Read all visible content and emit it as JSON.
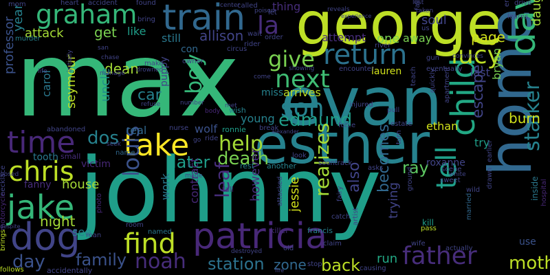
{
  "words": {
    "max": "max",
    "johnny": "johnny",
    "george": "george",
    "evan": "evan",
    "esther": "esther",
    "home": "home",
    "patricia": "patricia",
    "train": "train",
    "graham": "graham",
    "davis": "davis",
    "take": "take",
    "return": "return",
    "child": "child",
    "time": "time",
    "jake": "jake",
    "dog": "dog",
    "chris": "chris",
    "find": "find",
    "father": "father",
    "tell": "tell",
    "lucy": "lucy",
    "son": "son",
    "next": "next",
    "give": "give",
    "help": "help",
    "edmund": "edmund",
    "stalker": "stalker",
    "death": "death",
    "louis": "louis",
    "noah": "noah",
    "station": "station",
    "back": "back",
    "mother": "mother",
    "boy": "boy",
    "la": "la",
    "allison": "allison",
    "dos": "dos",
    "escape": "escape",
    "realizes": "realizes",
    "family": "family",
    "day": "day",
    "house": "house",
    "night": "night",
    "later": "later",
    "car": "car",
    "dean": "dean",
    "get": "get",
    "attack": "attack",
    "year": "year",
    "professor": "professor",
    "seymour": "seymour",
    "uncle": "uncle",
    "carol": "carol",
    "leaf": "leaf",
    "jessie": "jessie",
    "becomes": "becomes",
    "run": "run",
    "zone": "zone",
    "also": "also",
    "ray": "ray",
    "ethan": "ethan",
    "burn": "burn",
    "page": "page",
    "one": "one",
    "away": "away",
    "lauren": "lauren",
    "soul": "soul",
    "daughter": "daughter",
    "bryan": "bryan",
    "last": "last",
    "arrives": "arrives",
    "miss": "miss",
    "young": "young",
    "wolf": "wolf",
    "real": "real",
    "trying": "trying",
    "however": "however",
    "contract": "contract",
    "work": "work",
    "see": "see",
    "fanny": "fanny",
    "victim": "victim",
    "tooth": "tooth",
    "like": "like",
    "still": "still",
    "con": "con",
    "try": "try",
    "roxanne": "roxanne",
    "use": "use",
    "kill": "kill",
    "thing": "thing",
    "attempt": "attempt",
    "small": "small",
    "abandoned": "abandoned",
    "puppy": "puppy",
    "ronnie": "ronnie",
    "rest": "rest",
    "another": "another",
    "wish": "wish",
    "fall": "fall",
    "name": "name",
    "murder": "murder",
    "francis": "francis",
    "killer": "killer",
    "motorcycle": "motorcycle",
    "necklace": "necklace",
    "accidentally": "accidentally",
    "follows": "follows",
    "brings": "brings",
    "despite": "despite",
    "photo": "photo",
    "room": "room",
    "named": "named",
    "body": "body",
    "nurse": "nurse",
    "break": "break",
    "injured": "injured",
    "force": "force",
    "estate": "estate",
    "scene": "scene",
    "sweet": "sweet",
    "wild": "wild",
    "inside": "inside",
    "hospital": "hospital",
    "married": "married",
    "wife": "wife",
    "actually": "actually",
    "pass": "pass",
    "taken": "taken",
    "learns": "learns",
    "drive": "drive",
    "end": "end",
    "falling": "falling",
    "convinces": "convinces",
    "eventually": "eventually",
    "encounter": "encounter",
    "showing": "showing",
    "teach": "teach",
    "apartment": "apartment",
    "quickly": "quickly",
    "gun": "gun",
    "river": "river",
    "rider": "rider",
    "circus": "circus",
    "wait": "wait",
    "order": "order",
    "let": "let",
    "called": "called",
    "center": "center",
    "owner": "owner",
    "found": "found",
    "bring": "bring",
    "heart": "heart",
    "accident": "accident",
    "mom": "mom",
    "san": "san",
    "chase": "chase",
    "make": "make",
    "drowned": "drowned",
    "life": "life",
    "initially": "initially",
    "manage": "manage",
    "refuse": "refuse",
    "number": "number",
    "seek": "seek",
    "soontrack": "soontrack",
    "asks": "asks",
    "look": "look",
    "claim": "claim",
    "stop": "stop",
    "old": "old",
    "artist": "artist",
    "catch": "catch",
    "causing": "causing",
    "pull": "pull",
    "turn": "turn",
    "ground": "ground",
    "fairy": "fairy",
    "white": "white",
    "drawn": "drawn",
    "earlier": "earlier",
    "poison": "poison",
    "us": "us",
    "posed": "posed",
    "man": "man",
    "met": "met",
    "come": "come",
    "made": "made",
    "fire": "fire",
    "ii": "ii",
    "go": "go",
    "ride": "ride",
    "alexander": "alexander",
    "attacked": "attacked",
    "destroyed": "destroyed",
    "reveals": "reveals",
    "experience": "experience",
    "lost": "lost"
  },
  "colors": {
    "background": "#000000",
    "palette": "viridis"
  }
}
